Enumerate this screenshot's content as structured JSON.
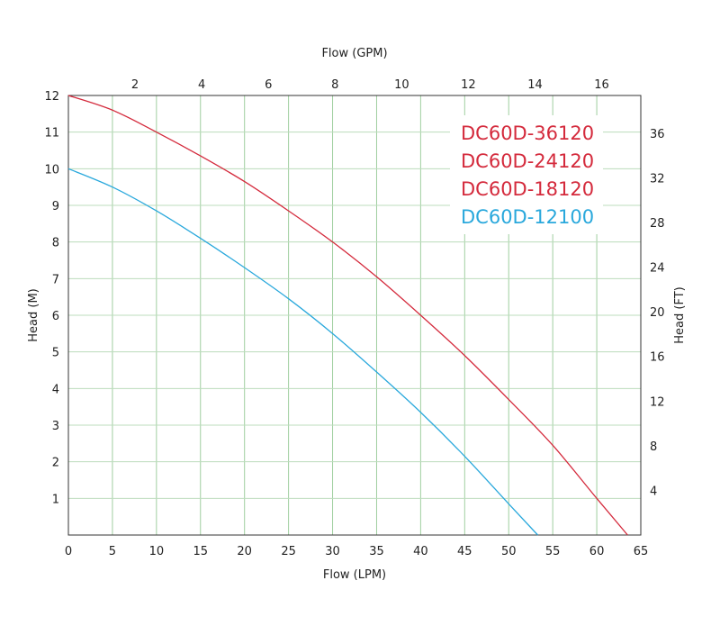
{
  "chart_data": {
    "type": "line",
    "x_bottom": {
      "label": "Flow (LPM)",
      "range": [
        0,
        65
      ],
      "ticks": [
        0,
        5,
        10,
        15,
        20,
        25,
        30,
        35,
        40,
        45,
        50,
        55,
        60,
        65
      ]
    },
    "x_top": {
      "label": "Flow (GPM)",
      "ticks": [
        2,
        4,
        6,
        8,
        10,
        12,
        14,
        16
      ],
      "lpm_per_unit": 3.785
    },
    "y_left": {
      "label": "Head (M)",
      "range": [
        0,
        12
      ],
      "ticks": [
        1,
        2,
        3,
        4,
        5,
        6,
        7,
        8,
        9,
        10,
        11,
        12
      ]
    },
    "y_right": {
      "label": "Head (FT)",
      "ticks": [
        4,
        8,
        12,
        16,
        20,
        24,
        28,
        32,
        36
      ],
      "m_per_unit": 0.3048
    },
    "grid": true,
    "legend": {
      "placement": "top-right",
      "entries": [
        {
          "text": "DC60D-36120",
          "color": "#d42a3c"
        },
        {
          "text": "DC60D-24120",
          "color": "#d42a3c"
        },
        {
          "text": "DC60D-18120",
          "color": "#d42a3c"
        },
        {
          "text": "DC60D-12100",
          "color": "#29a8dc"
        }
      ]
    },
    "series": [
      {
        "color": "#d42a3c",
        "x": [
          0,
          5,
          10,
          15,
          20,
          25,
          30,
          35,
          40,
          45,
          50,
          55,
          60,
          63.5
        ],
        "y": [
          12,
          11.6,
          11.0,
          10.35,
          9.65,
          8.85,
          8.0,
          7.05,
          6.0,
          4.9,
          3.7,
          2.45,
          1.0,
          0
        ]
      },
      {
        "color": "#29a8dc",
        "x": [
          0,
          5,
          10,
          15,
          20,
          25,
          30,
          35,
          40,
          45,
          50,
          53.3
        ],
        "y": [
          10,
          9.5,
          8.85,
          8.1,
          7.3,
          6.45,
          5.5,
          4.45,
          3.35,
          2.15,
          0.85,
          0
        ]
      }
    ]
  }
}
